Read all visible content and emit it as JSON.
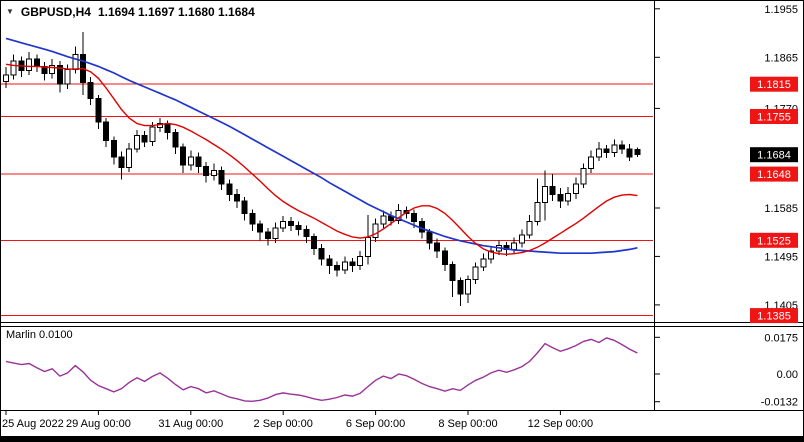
{
  "header": {
    "marker": "▼",
    "symbol": "GBPUSD,H4",
    "ohlc_text": "1.1694 1.1697 1.1680 1.1684"
  },
  "indicator_label": "Marlin 0.0100",
  "colors": {
    "background": "#ffffff",
    "level": "#f01515",
    "badge_red": "#f01515",
    "badge_black": "#000000",
    "badge_text": "#ffffff",
    "axis_text": "#000000",
    "ma_red": "#e00000",
    "ma_blue": "#1f35cc",
    "indicator": "#993399",
    "candle_stroke": "#000000",
    "candle_up_fill": "#ffffff",
    "candle_down_fill": "#000000"
  },
  "chart_data": {
    "type": "candlestick",
    "symbol": "GBPUSD",
    "timeframe": "H4",
    "title": "GBPUSD,H4",
    "last_ohlc": {
      "open": 1.1694,
      "high": 1.1697,
      "low": 1.168,
      "close": 1.1684
    },
    "price_range": {
      "top": 1.1964,
      "bottom": 1.1375
    },
    "price_ticks": [
      {
        "value": 1.1955,
        "label": "1.1955"
      },
      {
        "value": 1.1865,
        "label": "1.1865"
      },
      {
        "value": 1.177,
        "label": "1.1770"
      },
      {
        "value": 1.1585,
        "label": "1.1585"
      },
      {
        "value": 1.1495,
        "label": "1.1495"
      },
      {
        "value": 1.1405,
        "label": "1.1405"
      }
    ],
    "levels": [
      {
        "value": 1.1815,
        "label": "1.1815"
      },
      {
        "value": 1.1755,
        "label": "1.1755"
      },
      {
        "value": 1.1648,
        "label": "1.1648"
      },
      {
        "value": 1.1525,
        "label": "1.1525"
      },
      {
        "value": 1.1385,
        "label": "1.1385"
      }
    ],
    "current_price": {
      "value": 1.1684,
      "label": "1.1684"
    },
    "time_labels": [
      {
        "index": 0,
        "label": "25 Aug 2022"
      },
      {
        "index": 12,
        "label": "29 Aug 00:00"
      },
      {
        "index": 24,
        "label": "31 Aug 00:00"
      },
      {
        "index": 36,
        "label": "2 Sep 00:00"
      },
      {
        "index": 48,
        "label": "6 Sep 00:00"
      },
      {
        "index": 60,
        "label": "8 Sep 00:00"
      },
      {
        "index": 72,
        "label": "12 Sep 00:00"
      }
    ],
    "candles": [
      [
        1.182,
        1.1847,
        1.1808,
        1.1832
      ],
      [
        1.1832,
        1.187,
        1.1824,
        1.1858
      ],
      [
        1.1858,
        1.1866,
        1.1828,
        1.184
      ],
      [
        1.184,
        1.1875,
        1.1832,
        1.1862
      ],
      [
        1.1862,
        1.187,
        1.1838,
        1.1848
      ],
      [
        1.1848,
        1.1856,
        1.1822,
        1.1835
      ],
      [
        1.1835,
        1.1862,
        1.1826,
        1.185
      ],
      [
        1.185,
        1.1858,
        1.18,
        1.1815
      ],
      [
        1.1815,
        1.1852,
        1.1806,
        1.1842
      ],
      [
        1.1842,
        1.1885,
        1.1835,
        1.187
      ],
      [
        1.187,
        1.1912,
        1.1795,
        1.1818
      ],
      [
        1.1818,
        1.1828,
        1.1776,
        1.1788
      ],
      [
        1.1788,
        1.1795,
        1.1732,
        1.1745
      ],
      [
        1.1745,
        1.1752,
        1.1698,
        1.171
      ],
      [
        1.171,
        1.1718,
        1.1666,
        1.168
      ],
      [
        1.168,
        1.169,
        1.1638,
        1.166
      ],
      [
        1.166,
        1.1706,
        1.1652,
        1.1695
      ],
      [
        1.1695,
        1.173,
        1.1688,
        1.172
      ],
      [
        1.172,
        1.1728,
        1.1698,
        1.1708
      ],
      [
        1.1708,
        1.1745,
        1.17,
        1.1735
      ],
      [
        1.1735,
        1.1752,
        1.1726,
        1.1742
      ],
      [
        1.1742,
        1.1748,
        1.1712,
        1.1725
      ],
      [
        1.1725,
        1.1732,
        1.1685,
        1.1698
      ],
      [
        1.1698,
        1.1705,
        1.165,
        1.1665
      ],
      [
        1.1665,
        1.1692,
        1.1655,
        1.168
      ],
      [
        1.168,
        1.1688,
        1.165,
        1.1662
      ],
      [
        1.1662,
        1.167,
        1.1632,
        1.1645
      ],
      [
        1.1645,
        1.1668,
        1.1636,
        1.1655
      ],
      [
        1.1655,
        1.1662,
        1.1618,
        1.163
      ],
      [
        1.163,
        1.1638,
        1.1598,
        1.161
      ],
      [
        1.161,
        1.162,
        1.1585,
        1.1598
      ],
      [
        1.1598,
        1.1605,
        1.1562,
        1.1575
      ],
      [
        1.1575,
        1.1582,
        1.1542,
        1.1555
      ],
      [
        1.1555,
        1.1562,
        1.1525,
        1.154
      ],
      [
        1.154,
        1.1548,
        1.1515,
        1.1528
      ],
      [
        1.1528,
        1.1558,
        1.152,
        1.1548
      ],
      [
        1.1548,
        1.157,
        1.154,
        1.156
      ],
      [
        1.156,
        1.1568,
        1.1542,
        1.1552
      ],
      [
        1.1552,
        1.156,
        1.1534,
        1.1545
      ],
      [
        1.1545,
        1.1552,
        1.152,
        1.1532
      ],
      [
        1.1532,
        1.1538,
        1.1498,
        1.151
      ],
      [
        1.151,
        1.1518,
        1.1478,
        1.149
      ],
      [
        1.149,
        1.1498,
        1.1462,
        1.1478
      ],
      [
        1.1478,
        1.1486,
        1.1458,
        1.147
      ],
      [
        1.147,
        1.1495,
        1.1462,
        1.1485
      ],
      [
        1.1485,
        1.1492,
        1.1466,
        1.1478
      ],
      [
        1.1478,
        1.1505,
        1.147,
        1.1495
      ],
      [
        1.1495,
        1.1572,
        1.148,
        1.153
      ],
      [
        1.153,
        1.1565,
        1.1522,
        1.1555
      ],
      [
        1.1555,
        1.158,
        1.1548,
        1.157
      ],
      [
        1.157,
        1.1578,
        1.1552,
        1.1562
      ],
      [
        1.1562,
        1.1592,
        1.1555,
        1.158
      ],
      [
        1.158,
        1.1588,
        1.1565,
        1.1575
      ],
      [
        1.1575,
        1.1582,
        1.1548,
        1.156
      ],
      [
        1.156,
        1.1566,
        1.1528,
        1.154
      ],
      [
        1.154,
        1.1546,
        1.1508,
        1.152
      ],
      [
        1.152,
        1.1528,
        1.1492,
        1.1505
      ],
      [
        1.1505,
        1.1512,
        1.1468,
        1.148
      ],
      [
        1.148,
        1.1486,
        1.142,
        1.145
      ],
      [
        1.145,
        1.1456,
        1.1403,
        1.1425
      ],
      [
        1.1425,
        1.146,
        1.1408,
        1.1452
      ],
      [
        1.1452,
        1.1484,
        1.1444,
        1.1475
      ],
      [
        1.1475,
        1.15,
        1.1468,
        1.149
      ],
      [
        1.149,
        1.1514,
        1.1482,
        1.1505
      ],
      [
        1.1505,
        1.1525,
        1.1498,
        1.1515
      ],
      [
        1.1515,
        1.1522,
        1.1496,
        1.1508
      ],
      [
        1.1508,
        1.153,
        1.15,
        1.152
      ],
      [
        1.152,
        1.1545,
        1.1512,
        1.1535
      ],
      [
        1.1535,
        1.1572,
        1.1528,
        1.156
      ],
      [
        1.156,
        1.164,
        1.1552,
        1.1595
      ],
      [
        1.1595,
        1.1655,
        1.1562,
        1.1625
      ],
      [
        1.1625,
        1.1648,
        1.1598,
        1.161
      ],
      [
        1.161,
        1.1622,
        1.1585,
        1.1598
      ],
      [
        1.1598,
        1.1624,
        1.159,
        1.1612
      ],
      [
        1.1612,
        1.1642,
        1.1602,
        1.163
      ],
      [
        1.163,
        1.1668,
        1.1622,
        1.1658
      ],
      [
        1.1658,
        1.1692,
        1.165,
        1.168
      ],
      [
        1.168,
        1.1708,
        1.1672,
        1.1695
      ],
      [
        1.1695,
        1.1702,
        1.1678,
        1.1688
      ],
      [
        1.1688,
        1.1712,
        1.168,
        1.1702
      ],
      [
        1.1702,
        1.171,
        1.1685,
        1.1695
      ],
      [
        1.1695,
        1.1704,
        1.1672,
        1.168
      ],
      [
        1.1694,
        1.1697,
        1.168,
        1.1684
      ]
    ],
    "ma_blue": [
      1.19,
      1.1896,
      1.1892,
      1.1888,
      1.1884,
      1.188,
      1.1876,
      1.1871,
      1.1866,
      1.1862,
      1.1858,
      1.1853,
      1.1848,
      1.1842,
      1.1836,
      1.1829,
      1.1822,
      1.1816,
      1.181,
      1.1804,
      1.1798,
      1.1792,
      1.1786,
      1.1779,
      1.1772,
      1.1765,
      1.1758,
      1.1751,
      1.1744,
      1.1737,
      1.1729,
      1.1721,
      1.1713,
      1.1705,
      1.1697,
      1.1689,
      1.1681,
      1.1673,
      1.1665,
      1.1657,
      1.1649,
      1.1641,
      1.1632,
      1.1624,
      1.1616,
      1.1608,
      1.16,
      1.1592,
      1.1585,
      1.1578,
      1.1571,
      1.1565,
      1.1559,
      1.1553,
      1.1547,
      1.1542,
      1.1537,
      1.1532,
      1.1528,
      1.1524,
      1.1521,
      1.1518,
      1.1515,
      1.1513,
      1.1511,
      1.1509,
      1.1507,
      1.1506,
      1.1505,
      1.1504,
      1.1503,
      1.1502,
      1.1501,
      1.1501,
      1.1501,
      1.1501,
      1.1501,
      1.1502,
      1.1503,
      1.1504,
      1.1506,
      1.1508,
      1.1511
    ],
    "ma_red": [
      1.1852,
      1.185,
      1.1849,
      1.1848,
      1.1848,
      1.1847,
      1.1846,
      1.1845,
      1.1843,
      1.1843,
      1.1844,
      1.1838,
      1.1826,
      1.1808,
      1.1788,
      1.1768,
      1.1752,
      1.1742,
      1.1738,
      1.1738,
      1.174,
      1.1742,
      1.174,
      1.1735,
      1.1728,
      1.172,
      1.1712,
      1.1703,
      1.1694,
      1.1684,
      1.1673,
      1.1661,
      1.1648,
      1.1635,
      1.1621,
      1.1608,
      1.1597,
      1.1588,
      1.158,
      1.1573,
      1.1566,
      1.1558,
      1.155,
      1.1542,
      1.1536,
      1.1531,
      1.1529,
      1.1531,
      1.1537,
      1.1546,
      1.1556,
      1.1567,
      1.1577,
      1.1585,
      1.1589,
      1.1589,
      1.1584,
      1.1575,
      1.1562,
      1.1547,
      1.1532,
      1.1519,
      1.1509,
      1.1503,
      1.15,
      1.1499,
      1.15,
      1.1502,
      1.1506,
      1.1512,
      1.152,
      1.1529,
      1.1538,
      1.1547,
      1.1556,
      1.1566,
      1.1577,
      1.1588,
      1.1598,
      1.1605,
      1.1609,
      1.161,
      1.1608
    ],
    "indicator": {
      "name": "Marlin",
      "current": 0.01,
      "axis_ticks": [
        {
          "value": 0.0175,
          "label": "0.0175"
        },
        {
          "value": 0.0,
          "label": "0.00"
        },
        {
          "value": -0.0132,
          "label": "-0.0132"
        }
      ],
      "values": [
        0.006,
        0.0052,
        0.0045,
        0.005,
        0.003,
        0.0012,
        0.0025,
        -0.001,
        0.0005,
        0.004,
        0.001,
        -0.003,
        -0.0055,
        -0.007,
        -0.0085,
        -0.007,
        -0.004,
        -0.0018,
        -0.0035,
        -0.0012,
        0.0005,
        -0.002,
        -0.005,
        -0.0075,
        -0.006,
        -0.007,
        -0.009,
        -0.008,
        -0.0095,
        -0.011,
        -0.0118,
        -0.0128,
        -0.013,
        -0.0125,
        -0.0115,
        -0.0098,
        -0.009,
        -0.0096,
        -0.01,
        -0.0108,
        -0.0118,
        -0.0125,
        -0.012,
        -0.0112,
        -0.01,
        -0.0105,
        -0.0092,
        -0.006,
        -0.003,
        -0.001,
        -0.0022,
        0.0,
        -0.0008,
        -0.0025,
        -0.0045,
        -0.006,
        -0.007,
        -0.0082,
        -0.007,
        -0.0078,
        -0.0052,
        -0.003,
        -0.0015,
        0.0005,
        0.0018,
        0.0008,
        0.002,
        0.0035,
        0.006,
        0.01,
        0.0145,
        0.0125,
        0.0108,
        0.012,
        0.0135,
        0.0155,
        0.0165,
        0.015,
        0.0172,
        0.016,
        0.014,
        0.0118,
        0.01
      ]
    }
  }
}
